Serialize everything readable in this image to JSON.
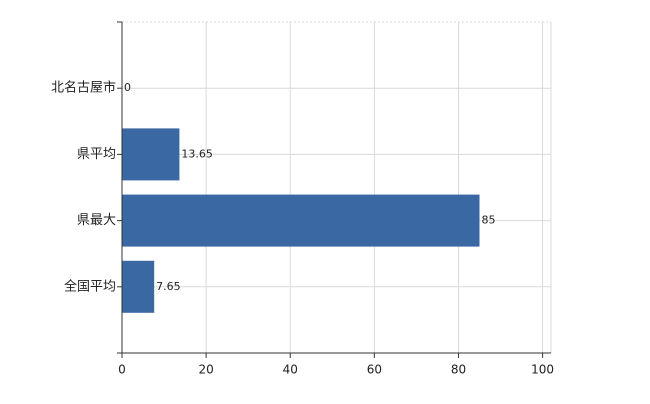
{
  "chart_data": {
    "type": "bar",
    "orientation": "horizontal",
    "categories": [
      "北名古屋市",
      "県平均",
      "県最大",
      "全国平均"
    ],
    "values": [
      0,
      13.65,
      85,
      7.65
    ],
    "color": "#3a68a3",
    "xlim": [
      0,
      102
    ],
    "xticks": [
      0,
      20,
      40,
      60,
      80,
      100
    ],
    "grid": true
  }
}
